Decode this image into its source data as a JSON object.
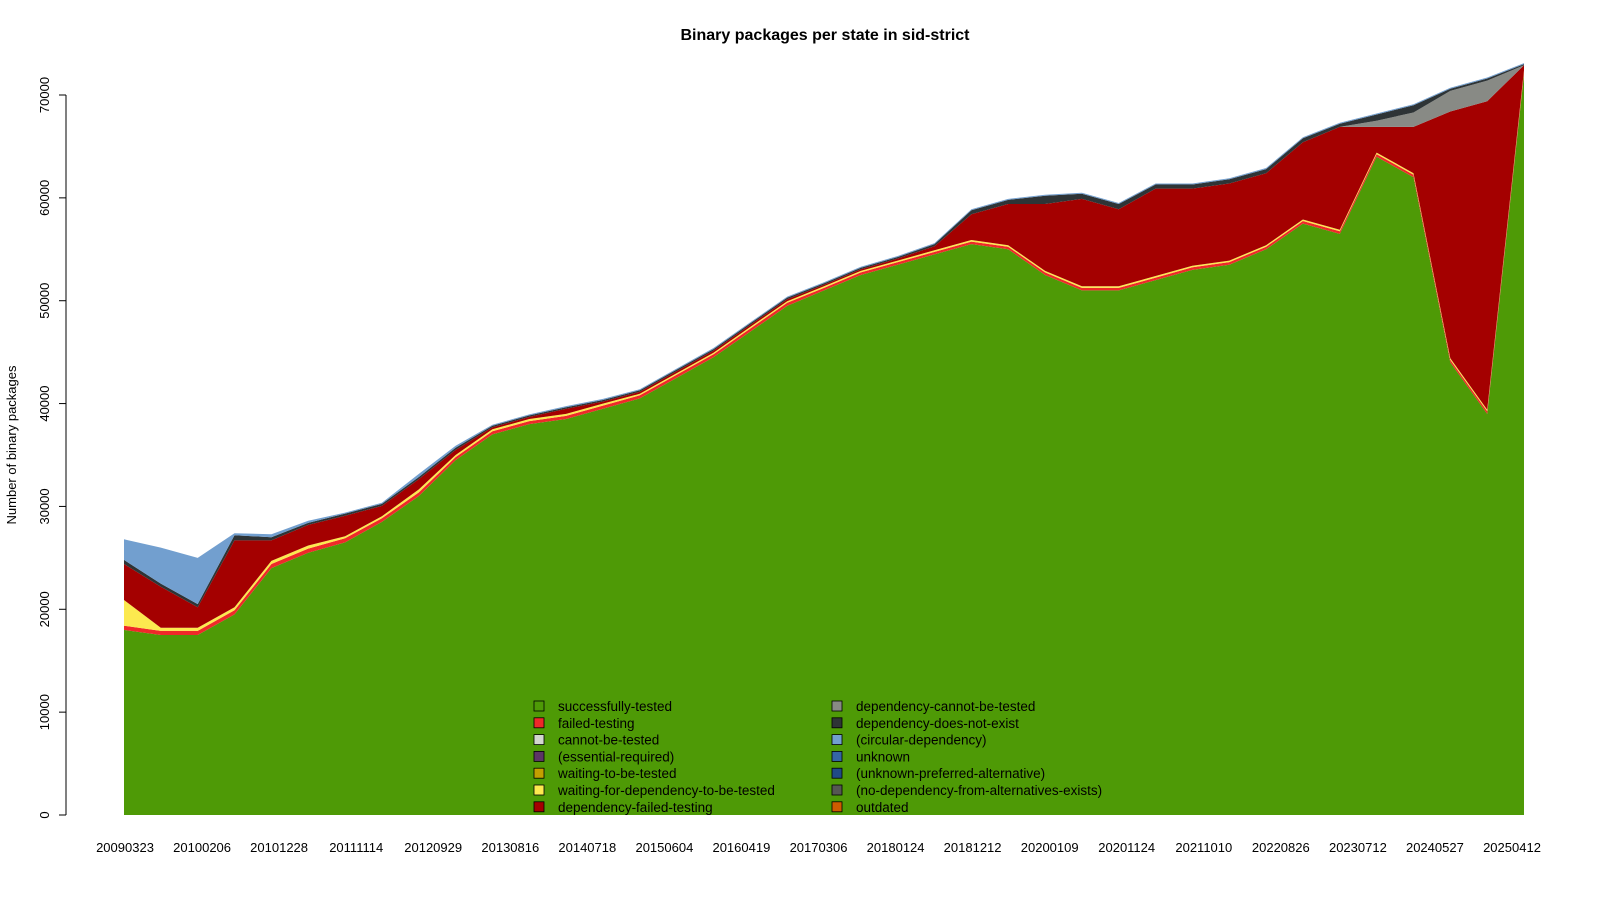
{
  "chart_data": {
    "type": "area",
    "stacked": true,
    "title": "Binary packages per state in sid-strict",
    "xlabel": "",
    "ylabel": "Number of binary packages",
    "ylim": [
      0,
      72000
    ],
    "y_ticks": [
      0,
      10000,
      20000,
      30000,
      40000,
      50000,
      60000,
      70000
    ],
    "y_tick_labels": [
      "0",
      "10000",
      "20000",
      "30000",
      "40000",
      "50000",
      "60000",
      "70000"
    ],
    "x_tick_labels": [
      "20090323",
      "20100206",
      "20101228",
      "20111114",
      "20120929",
      "20130816",
      "20140718",
      "20150604",
      "20160419",
      "20170306",
      "20180124",
      "20181212",
      "20200109",
      "20201124",
      "20211010",
      "20220826",
      "20230712",
      "20240527",
      "20250412"
    ],
    "grid": false,
    "legend_position": "bottom-center",
    "legend": [
      {
        "name": "successfully-tested",
        "color": "#4e9a06"
      },
      {
        "name": "failed-testing",
        "color": "#ef2929"
      },
      {
        "name": "cannot-be-tested",
        "color": "#d3d7cf"
      },
      {
        "name": "(essential-required)",
        "color": "#5c3566"
      },
      {
        "name": "waiting-to-be-tested",
        "color": "#c4a000"
      },
      {
        "name": "waiting-for-dependency-to-be-tested",
        "color": "#fce94f"
      },
      {
        "name": "dependency-failed-testing",
        "color": "#a40000"
      },
      {
        "name": "dependency-cannot-be-tested",
        "color": "#888a85"
      },
      {
        "name": "dependency-does-not-exist",
        "color": "#2e3436"
      },
      {
        "name": "(circular-dependency)",
        "color": "#729fcf"
      },
      {
        "name": "unknown",
        "color": "#3465a4"
      },
      {
        "name": "(unknown-preferred-alternative)",
        "color": "#204a87"
      },
      {
        "name": "(no-dependency-from-alternatives-exists)",
        "color": "#555753"
      },
      {
        "name": "outdated",
        "color": "#ce5c00"
      }
    ],
    "x": [
      "20090323",
      "20090601",
      "20090901",
      "20100206",
      "20100501",
      "20101001",
      "20101228",
      "20110501",
      "20111114",
      "20120501",
      "20120929",
      "20130301",
      "20130816",
      "20140101",
      "20140718",
      "20150101",
      "20150604",
      "20160101",
      "20160419",
      "20161001",
      "20170306",
      "20170901",
      "20180124",
      "20180701",
      "20181212",
      "20190601",
      "20200109",
      "20200601",
      "20201124",
      "20210601",
      "20211010",
      "20220401",
      "20220826",
      "20230301",
      "20230712",
      "20231201",
      "20240527",
      "20241101",
      "20250412"
    ],
    "series": [
      {
        "name": "successfully-tested",
        "values": [
          18000,
          17500,
          17500,
          19500,
          24000,
          25500,
          26500,
          28500,
          31000,
          34500,
          37000,
          38000,
          38500,
          39500,
          40500,
          42500,
          44500,
          47000,
          49500,
          51000,
          52500,
          53500,
          54500,
          55500,
          55000,
          52500,
          51000,
          51000,
          52000,
          53000,
          53500,
          55000,
          57500,
          56500,
          64000,
          62000,
          44000,
          39000,
          72000
        ]
      },
      {
        "name": "failed-testing",
        "values": [
          400,
          400,
          400,
          400,
          400,
          400,
          400,
          350,
          350,
          300,
          300,
          300,
          300,
          300,
          300,
          300,
          300,
          300,
          300,
          250,
          250,
          250,
          250,
          250,
          250,
          250,
          250,
          250,
          250,
          250,
          250,
          250,
          250,
          250,
          250,
          250,
          250,
          250,
          250
        ]
      },
      {
        "name": "waiting-for-dependency-to-be-tested",
        "values": [
          2500,
          300,
          300,
          300,
          300,
          300,
          200,
          200,
          300,
          200,
          200,
          200,
          200,
          200,
          150,
          150,
          150,
          150,
          150,
          150,
          150,
          150,
          150,
          150,
          150,
          150,
          150,
          150,
          150,
          150,
          150,
          150,
          150,
          150,
          150,
          150,
          150,
          150,
          150
        ]
      },
      {
        "name": "dependency-failed-testing",
        "values": [
          3500,
          4000,
          2000,
          6500,
          2000,
          2000,
          2000,
          1000,
          1000,
          500,
          200,
          200,
          500,
          200,
          200,
          200,
          200,
          200,
          200,
          150,
          150,
          200,
          400,
          2500,
          4000,
          6500,
          8500,
          7500,
          8500,
          7500,
          7500,
          7000,
          7500,
          10000,
          2500,
          4500,
          24000,
          30000,
          500
        ]
      },
      {
        "name": "dependency-cannot-be-tested",
        "values": [
          0,
          0,
          0,
          0,
          0,
          0,
          0,
          0,
          0,
          0,
          0,
          0,
          0,
          0,
          0,
          0,
          0,
          0,
          0,
          0,
          0,
          0,
          0,
          0,
          0,
          0,
          0,
          0,
          0,
          0,
          0,
          0,
          0,
          0,
          600,
          1400,
          2000,
          2000,
          0
        ]
      },
      {
        "name": "dependency-does-not-exist",
        "values": [
          400,
          300,
          300,
          500,
          300,
          200,
          200,
          200,
          200,
          200,
          150,
          150,
          150,
          150,
          150,
          150,
          150,
          150,
          150,
          150,
          150,
          150,
          200,
          400,
          400,
          800,
          500,
          500,
          400,
          400,
          400,
          400,
          400,
          300,
          600,
          700,
          200,
          200,
          100
        ]
      },
      {
        "name": "(circular-dependency)",
        "values": [
          2000,
          3500,
          4500,
          200,
          300,
          200,
          100,
          100,
          300,
          200,
          100,
          100,
          100,
          100,
          100,
          100,
          100,
          100,
          100,
          100,
          100,
          100,
          100,
          100,
          100,
          100,
          100,
          100,
          100,
          100,
          100,
          100,
          100,
          100,
          100,
          100,
          100,
          100,
          100
        ]
      }
    ]
  }
}
